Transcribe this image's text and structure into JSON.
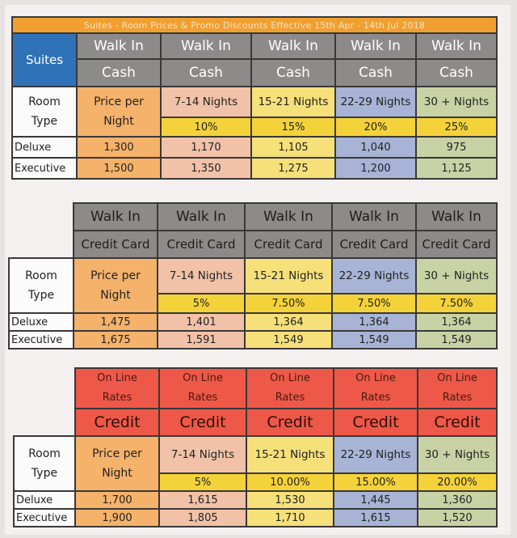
{
  "sheet": {
    "banner": "Suites - Room Prices & Promo Discounts Effective 15th Apr - 14th Jul 2018",
    "suites_label": "Suites",
    "room_type": [
      "Room",
      "Type"
    ],
    "price_per_night": [
      "Price per",
      "Night"
    ],
    "nights": [
      "7-14 Nights",
      "15-21 Nights",
      "22-29 Nights",
      "30 + Nights"
    ],
    "row_labels": [
      "Deluxe",
      "Executive"
    ]
  },
  "cash": {
    "walk_in": "Walk In",
    "sub": "Cash",
    "discounts": [
      "10%",
      "15%",
      "20%",
      "25%"
    ],
    "deluxe": [
      "1,300",
      "1,170",
      "1,105",
      "1,040",
      "975"
    ],
    "executive": [
      "1,500",
      "1,350",
      "1,275",
      "1,200",
      "1,125"
    ]
  },
  "credit_card": {
    "walk_in": "Walk In",
    "sub": "Credit Card",
    "discounts": [
      "5%",
      "7.50%",
      "7.50%",
      "7.50%"
    ],
    "deluxe": [
      "1,475",
      "1,401",
      "1,364",
      "1,364",
      "1,364"
    ],
    "executive": [
      "1,675",
      "1,591",
      "1,549",
      "1,549",
      "1,549"
    ]
  },
  "online": {
    "line1": "On Line",
    "line2": "Rates",
    "sub": "Credit",
    "discounts": [
      "5%",
      "10.00%",
      "15.00%",
      "20.00%"
    ],
    "deluxe": [
      "1,700",
      "1,615",
      "1,530",
      "1,445",
      "1,360"
    ],
    "executive": [
      "1,900",
      "1,805",
      "1,710",
      "1,615",
      "1,520"
    ]
  },
  "colors": {
    "suites": "#2f72b8",
    "header_grey": "#8d8a8a",
    "online_red": "#ee5848",
    "price_orange": "#f4b26a",
    "nights_7_14": "#f1c2a8",
    "nights_15_21": "#f6e07a",
    "nights_22_29": "#a7b4d6",
    "nights_30": "#c9d2a4",
    "discount_gold": "#f4d23a"
  }
}
